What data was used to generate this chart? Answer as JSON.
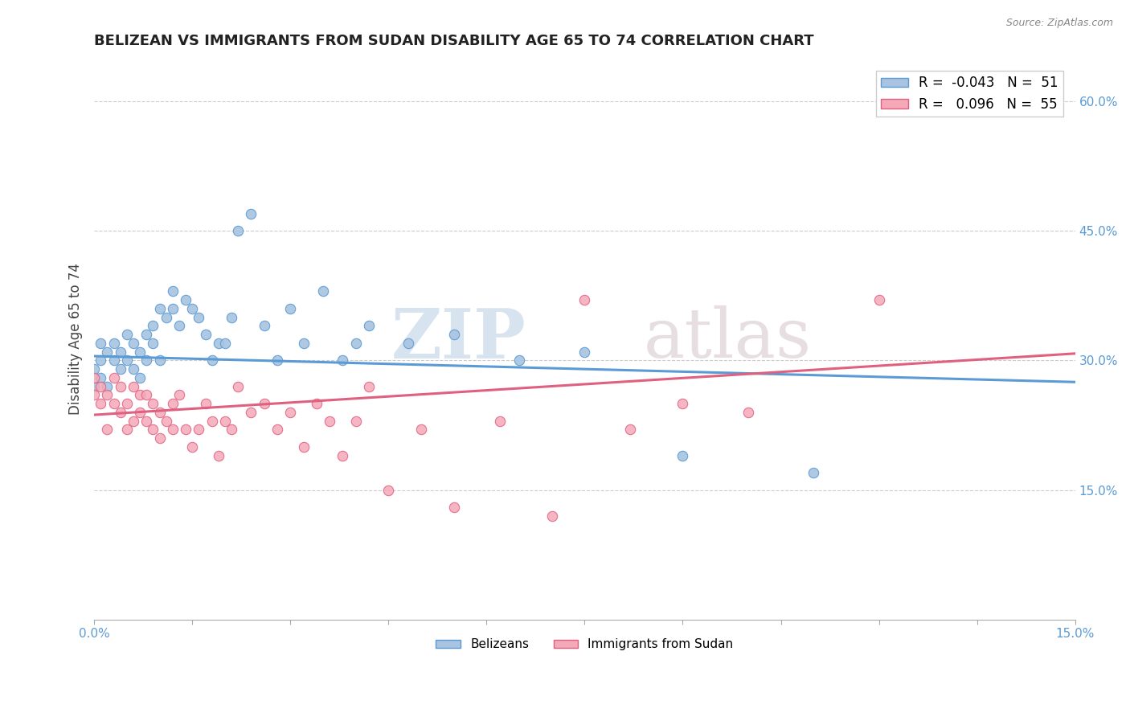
{
  "title": "BELIZEAN VS IMMIGRANTS FROM SUDAN DISABILITY AGE 65 TO 74 CORRELATION CHART",
  "source_text": "Source: ZipAtlas.com",
  "ylabel": "Disability Age 65 to 74",
  "xlim": [
    0.0,
    0.15
  ],
  "ylim": [
    0.0,
    0.65
  ],
  "xticks": [
    0.0,
    0.015,
    0.03,
    0.045,
    0.06,
    0.075,
    0.09,
    0.105,
    0.12,
    0.135,
    0.15
  ],
  "xticklabels": [
    "0.0%",
    "",
    "",
    "",
    "",
    "",
    "",
    "",
    "",
    "",
    "15.0%"
  ],
  "yticks_right": [
    0.15,
    0.3,
    0.45,
    0.6
  ],
  "ytick_labels_right": [
    "15.0%",
    "30.0%",
    "45.0%",
    "60.0%"
  ],
  "legend_R1": "-0.043",
  "legend_N1": "51",
  "legend_R2": "0.096",
  "legend_N2": "55",
  "color_belizean": "#a8c4e0",
  "color_sudan": "#f4a8b8",
  "line_color_belizean": "#5b9bd5",
  "line_color_sudan": "#e06080",
  "watermark_zip": "ZIP",
  "watermark_atlas": "atlas",
  "belizean_x": [
    0.0,
    0.0,
    0.001,
    0.001,
    0.001,
    0.002,
    0.002,
    0.003,
    0.003,
    0.004,
    0.004,
    0.005,
    0.005,
    0.006,
    0.006,
    0.007,
    0.007,
    0.008,
    0.008,
    0.009,
    0.009,
    0.01,
    0.01,
    0.011,
    0.012,
    0.012,
    0.013,
    0.014,
    0.015,
    0.016,
    0.017,
    0.018,
    0.019,
    0.02,
    0.021,
    0.022,
    0.024,
    0.026,
    0.028,
    0.03,
    0.032,
    0.035,
    0.038,
    0.04,
    0.042,
    0.048,
    0.055,
    0.065,
    0.075,
    0.09,
    0.11
  ],
  "belizean_y": [
    0.27,
    0.29,
    0.28,
    0.3,
    0.32,
    0.27,
    0.31,
    0.3,
    0.32,
    0.29,
    0.31,
    0.3,
    0.33,
    0.29,
    0.32,
    0.31,
    0.28,
    0.33,
    0.3,
    0.32,
    0.34,
    0.3,
    0.36,
    0.35,
    0.38,
    0.36,
    0.34,
    0.37,
    0.36,
    0.35,
    0.33,
    0.3,
    0.32,
    0.32,
    0.35,
    0.45,
    0.47,
    0.34,
    0.3,
    0.36,
    0.32,
    0.38,
    0.3,
    0.32,
    0.34,
    0.32,
    0.33,
    0.3,
    0.31,
    0.19,
    0.17
  ],
  "sudan_x": [
    0.0,
    0.0,
    0.001,
    0.001,
    0.002,
    0.002,
    0.003,
    0.003,
    0.004,
    0.004,
    0.005,
    0.005,
    0.006,
    0.006,
    0.007,
    0.007,
    0.008,
    0.008,
    0.009,
    0.009,
    0.01,
    0.01,
    0.011,
    0.012,
    0.012,
    0.013,
    0.014,
    0.015,
    0.016,
    0.017,
    0.018,
    0.019,
    0.02,
    0.021,
    0.022,
    0.024,
    0.026,
    0.028,
    0.03,
    0.032,
    0.034,
    0.036,
    0.038,
    0.04,
    0.042,
    0.045,
    0.05,
    0.055,
    0.062,
    0.07,
    0.075,
    0.082,
    0.09,
    0.1,
    0.12
  ],
  "sudan_y": [
    0.26,
    0.28,
    0.27,
    0.25,
    0.26,
    0.22,
    0.25,
    0.28,
    0.24,
    0.27,
    0.22,
    0.25,
    0.23,
    0.27,
    0.24,
    0.26,
    0.23,
    0.26,
    0.22,
    0.25,
    0.21,
    0.24,
    0.23,
    0.22,
    0.25,
    0.26,
    0.22,
    0.2,
    0.22,
    0.25,
    0.23,
    0.19,
    0.23,
    0.22,
    0.27,
    0.24,
    0.25,
    0.22,
    0.24,
    0.2,
    0.25,
    0.23,
    0.19,
    0.23,
    0.27,
    0.15,
    0.22,
    0.13,
    0.23,
    0.12,
    0.37,
    0.22,
    0.25,
    0.24,
    0.37
  ]
}
